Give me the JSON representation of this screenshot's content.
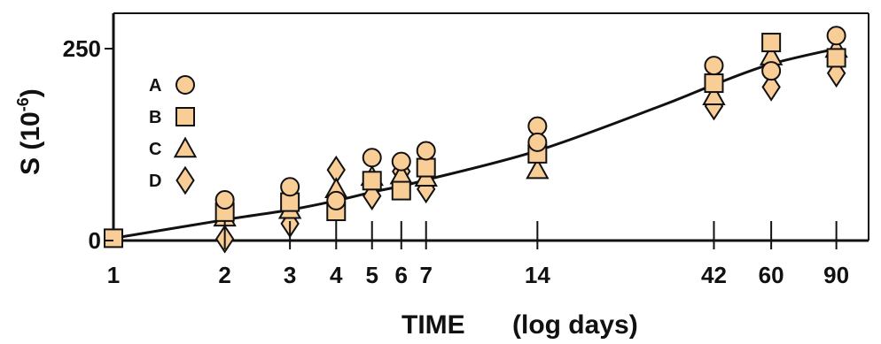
{
  "chart_data": {
    "type": "scatter",
    "x_scale": "log",
    "xlabel": "TIME",
    "xlabel_unit": "(log days)",
    "ylabel": "S (10",
    "ylabel_exp": "-6",
    "ylabel_close": ")",
    "xlim": [
      1,
      110
    ],
    "ylim": [
      0,
      300
    ],
    "x_ticks": [
      {
        "value": 1,
        "label": "1"
      },
      {
        "value": 2,
        "label": "2"
      },
      {
        "value": 3,
        "label": "3"
      },
      {
        "value": 4,
        "label": "4"
      },
      {
        "value": 5,
        "label": "5"
      },
      {
        "value": 6,
        "label": "6"
      },
      {
        "value": 7,
        "label": "7"
      },
      {
        "value": 14,
        "label": "14"
      },
      {
        "value": 42,
        "label": "42"
      },
      {
        "value": 60,
        "label": "60"
      },
      {
        "value": 90,
        "label": "90"
      }
    ],
    "y_ticks": [
      {
        "value": 0,
        "label": "0"
      },
      {
        "value": 250,
        "label": "250"
      }
    ],
    "marker_fill": "#f8cd96",
    "marker_stroke": "#111111",
    "legend": [
      {
        "key": "A",
        "marker": "circle"
      },
      {
        "key": "B",
        "marker": "square"
      },
      {
        "key": "C",
        "marker": "triangle"
      },
      {
        "key": "D",
        "marker": "diamond"
      }
    ],
    "legend_position": "top-left",
    "series": [
      {
        "name": "A",
        "marker": "circle",
        "points": [
          [
            2,
            53
          ],
          [
            3,
            70
          ],
          [
            4,
            52
          ],
          [
            5,
            108
          ],
          [
            6,
            103
          ],
          [
            7,
            117
          ],
          [
            14,
            149
          ],
          [
            14,
            128
          ],
          [
            42,
            228
          ],
          [
            60,
            221
          ],
          [
            90,
            267
          ]
        ]
      },
      {
        "name": "B",
        "marker": "square",
        "points": [
          [
            1,
            3
          ],
          [
            2,
            37
          ],
          [
            3,
            50
          ],
          [
            4,
            38
          ],
          [
            5,
            78
          ],
          [
            6,
            65
          ],
          [
            7,
            95
          ],
          [
            14,
            113
          ],
          [
            42,
            205
          ],
          [
            60,
            258
          ],
          [
            90,
            238
          ]
        ]
      },
      {
        "name": "C",
        "marker": "triangle",
        "points": [
          [
            2,
            30
          ],
          [
            3,
            40
          ],
          [
            4,
            67
          ],
          [
            5,
            83
          ],
          [
            6,
            85
          ],
          [
            7,
            82
          ],
          [
            14,
            92
          ],
          [
            42,
            188
          ],
          [
            60,
            240
          ],
          [
            90,
            250
          ]
        ]
      },
      {
        "name": "D",
        "marker": "diamond",
        "points": [
          [
            2,
            2
          ],
          [
            3,
            22
          ],
          [
            4,
            92
          ],
          [
            5,
            58
          ],
          [
            6,
            90
          ],
          [
            7,
            67
          ],
          [
            42,
            175
          ],
          [
            60,
            200
          ],
          [
            90,
            218
          ]
        ]
      }
    ],
    "fit_curve": [
      [
        1,
        3
      ],
      [
        2,
        27
      ],
      [
        3,
        40
      ],
      [
        4,
        52
      ],
      [
        5,
        63
      ],
      [
        6,
        71
      ],
      [
        7,
        79
      ],
      [
        14,
        117
      ],
      [
        30,
        175
      ],
      [
        42,
        203
      ],
      [
        60,
        230
      ],
      [
        90,
        250
      ]
    ]
  }
}
